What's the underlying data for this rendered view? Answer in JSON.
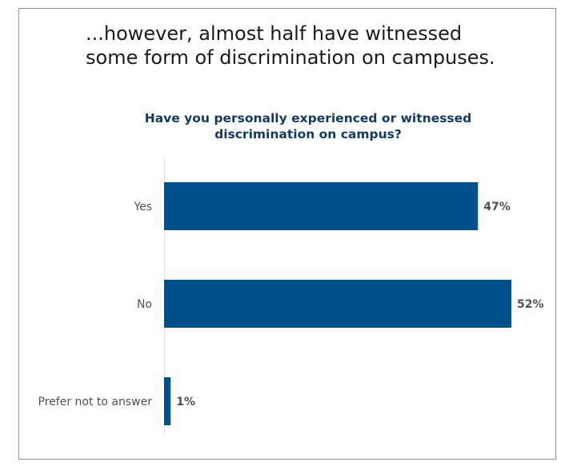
{
  "headline": {
    "line1": "...however, almost half have witnessed",
    "line2": "some form of discrimination on campuses."
  },
  "chart_data": {
    "type": "bar",
    "orientation": "horizontal",
    "title_line1": "Have you personally experienced or witnessed",
    "title_line2": "discrimination on campus?",
    "categories": [
      "Yes",
      "No",
      "Prefer not to answer"
    ],
    "values": [
      47,
      52,
      1
    ],
    "value_labels": [
      "47%",
      "52%",
      "1%"
    ],
    "unit": "%",
    "xlim": [
      0,
      52
    ],
    "grid": false,
    "bar_color": "#00508c"
  }
}
